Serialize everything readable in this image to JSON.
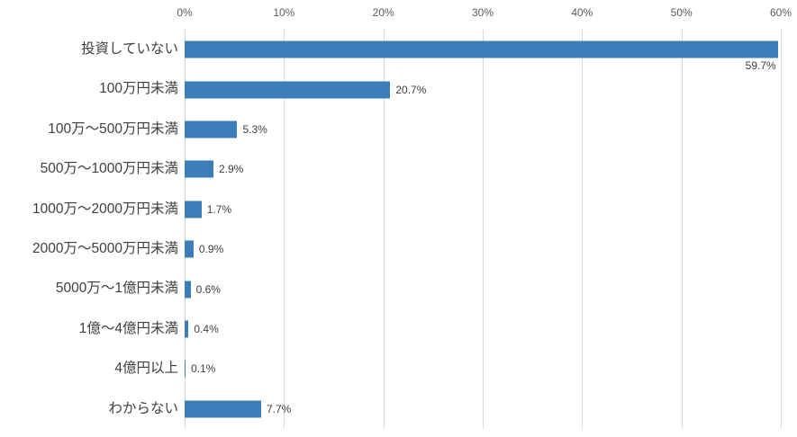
{
  "chart_data": {
    "type": "bar",
    "orientation": "horizontal",
    "title": "",
    "xlabel": "",
    "ylabel": "",
    "categories": [
      "投資していない",
      "100万円未満",
      "100万〜500万円未満",
      "500万〜1000万円未満",
      "1000万〜2000万円未満",
      "2000万〜5000万円未満",
      "5000万〜1億円未満",
      "1億〜4億円未満",
      "4億円以上",
      "わからない"
    ],
    "values": [
      59.7,
      20.7,
      5.3,
      2.9,
      1.7,
      0.9,
      0.6,
      0.4,
      0.1,
      7.7
    ],
    "data_labels": [
      "59.7%",
      "20.7%",
      "5.3%",
      "2.9%",
      "1.7%",
      "0.9%",
      "0.6%",
      "0.4%",
      "0.1%",
      "7.7%"
    ],
    "label_placement": [
      "below-end",
      "outside",
      "outside",
      "outside",
      "outside",
      "outside",
      "outside",
      "outside",
      "outside",
      "outside"
    ],
    "x_axis": {
      "position": "top",
      "min": 0,
      "max": 60,
      "tick_step": 10,
      "ticks": [
        "0%",
        "10%",
        "20%",
        "30%",
        "40%",
        "50%",
        "60%"
      ]
    },
    "grid": true,
    "legend": false,
    "colors": {
      "bar": "#3b7db9",
      "gridline": "#d9d9d9",
      "tick_label": "#595959",
      "category_label": "#3f3f3f",
      "data_label": "#404040",
      "background": "#ffffff"
    }
  }
}
